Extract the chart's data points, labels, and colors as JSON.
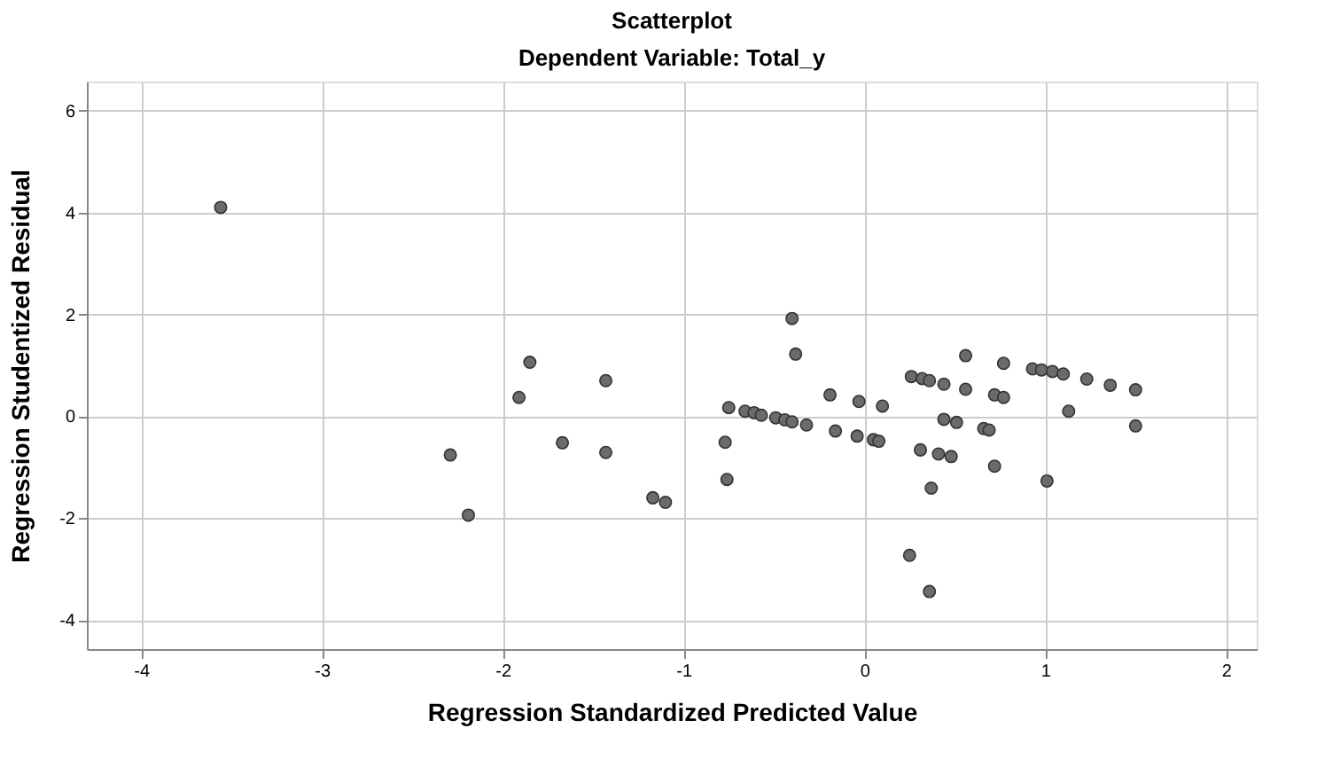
{
  "chart_data": {
    "type": "scatter",
    "title": "Scatterplot",
    "subtitle": "Dependent Variable: Total_y",
    "xlabel": "Regression Standardized Predicted Value",
    "ylabel": "Regression Studentized Residual",
    "x": [
      -3.56,
      -2.29,
      -2.19,
      -1.91,
      -1.85,
      -1.67,
      -1.43,
      -1.43,
      -1.17,
      -1.1,
      -0.77,
      -0.76,
      -0.75,
      -0.66,
      -0.61,
      -0.57,
      -0.49,
      -0.44,
      -0.4,
      -0.4,
      -0.38,
      -0.32,
      -0.19,
      -0.16,
      -0.03,
      -0.04,
      0.05,
      0.08,
      0.1,
      0.25,
      0.26,
      0.31,
      0.32,
      0.36,
      0.36,
      0.37,
      0.41,
      0.44,
      0.44,
      0.48,
      0.51,
      0.56,
      0.56,
      0.66,
      0.69,
      0.72,
      0.72,
      0.77,
      0.77,
      0.93,
      0.98,
      1.01,
      1.04,
      1.1,
      1.13,
      1.23,
      1.36,
      1.5,
      1.5
    ],
    "series": [
      {
        "color": "#6b6b6b",
        "values": [
          4.1,
          -0.76,
          -1.94,
          0.37,
          1.06,
          -0.52,
          0.7,
          -0.71,
          -1.6,
          -1.69,
          -0.51,
          -1.24,
          0.17,
          0.1,
          0.07,
          0.02,
          -0.03,
          -0.07,
          -0.11,
          1.92,
          1.22,
          -0.17,
          0.42,
          -0.29,
          0.29,
          -0.39,
          -0.46,
          -0.49,
          0.2,
          -2.73,
          0.78,
          -0.66,
          0.74,
          0.7,
          -3.44,
          -1.41,
          -0.74,
          0.63,
          -0.06,
          -0.79,
          -0.12,
          1.19,
          0.53,
          -0.24,
          -0.27,
          0.42,
          -0.98,
          1.04,
          0.37,
          0.93,
          0.91,
          -1.27,
          0.88,
          0.83,
          0.1,
          0.73,
          0.61,
          0.52,
          -0.19
        ]
      }
    ],
    "xlim": [
      -4.3,
      2.17
    ],
    "ylim": [
      -4.57,
      6.57
    ],
    "xticks": [
      -4,
      -3,
      -2,
      -1,
      0,
      1,
      2
    ],
    "yticks": [
      -4,
      -2,
      0,
      2,
      4,
      6
    ],
    "grid": true,
    "marker": "circle",
    "legend": false
  }
}
